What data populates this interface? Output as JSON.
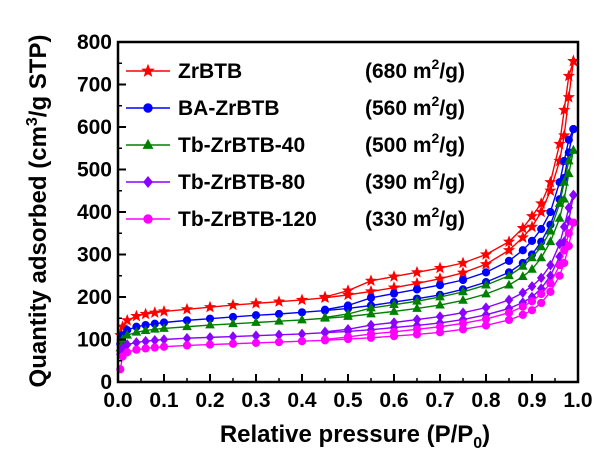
{
  "chart_data": {
    "type": "line",
    "xlabel": "Relative pressure (P/P",
    "xlabel_sub": "0",
    "xlabel_end": ")",
    "ylabel": "Quantity adsorbed (cm",
    "ylabel_sup": "3",
    "ylabel_end": "/g STP)",
    "xlim": [
      0.0,
      1.0
    ],
    "ylim": [
      0,
      800
    ],
    "xticks": [
      "0.0",
      "0.1",
      "0.2",
      "0.3",
      "0.4",
      "0.5",
      "0.6",
      "0.7",
      "0.8",
      "0.9",
      "1.0"
    ],
    "yticks": [
      "0",
      "100",
      "200",
      "300",
      "400",
      "500",
      "600",
      "700",
      "800"
    ],
    "grid": false,
    "legend_position": "top-left",
    "series": [
      {
        "name": "ZrBTB",
        "area": "(680 m",
        "area_sup": "2",
        "area_end": "/g)",
        "color": "#ff0000",
        "marker": "star",
        "adsorption": [
          [
            0.005,
            110
          ],
          [
            0.01,
            130
          ],
          [
            0.02,
            145
          ],
          [
            0.04,
            155
          ],
          [
            0.06,
            160
          ],
          [
            0.08,
            163
          ],
          [
            0.1,
            166
          ],
          [
            0.15,
            171
          ],
          [
            0.2,
            176
          ],
          [
            0.25,
            181
          ],
          [
            0.3,
            185
          ],
          [
            0.35,
            189
          ],
          [
            0.4,
            193
          ],
          [
            0.45,
            198
          ],
          [
            0.5,
            205
          ],
          [
            0.55,
            213
          ],
          [
            0.6,
            222
          ],
          [
            0.65,
            232
          ],
          [
            0.7,
            243
          ],
          [
            0.75,
            257
          ],
          [
            0.8,
            277
          ],
          [
            0.85,
            310
          ],
          [
            0.88,
            340
          ],
          [
            0.9,
            365
          ],
          [
            0.92,
            400
          ],
          [
            0.94,
            450
          ],
          [
            0.96,
            520
          ],
          [
            0.97,
            580
          ],
          [
            0.98,
            670
          ],
          [
            0.99,
            755
          ]
        ],
        "desorption": [
          [
            0.99,
            755
          ],
          [
            0.98,
            720
          ],
          [
            0.97,
            640
          ],
          [
            0.96,
            560
          ],
          [
            0.94,
            470
          ],
          [
            0.92,
            420
          ],
          [
            0.9,
            390
          ],
          [
            0.88,
            362
          ],
          [
            0.85,
            330
          ],
          [
            0.8,
            300
          ],
          [
            0.75,
            280
          ],
          [
            0.7,
            268
          ],
          [
            0.65,
            258
          ],
          [
            0.6,
            248
          ],
          [
            0.55,
            238
          ],
          [
            0.5,
            215
          ],
          [
            0.45,
            200
          ]
        ]
      },
      {
        "name": "BA-ZrBTB",
        "area": "(560 m",
        "area_sup": "2",
        "area_end": "/g)",
        "color": "#0000ff",
        "marker": "circle",
        "adsorption": [
          [
            0.005,
            90
          ],
          [
            0.01,
            110
          ],
          [
            0.02,
            122
          ],
          [
            0.04,
            130
          ],
          [
            0.06,
            134
          ],
          [
            0.08,
            137
          ],
          [
            0.1,
            140
          ],
          [
            0.15,
            145
          ],
          [
            0.2,
            149
          ],
          [
            0.25,
            153
          ],
          [
            0.3,
            157
          ],
          [
            0.35,
            160
          ],
          [
            0.4,
            164
          ],
          [
            0.45,
            168
          ],
          [
            0.5,
            173
          ],
          [
            0.55,
            180
          ],
          [
            0.6,
            188
          ],
          [
            0.65,
            196
          ],
          [
            0.7,
            205
          ],
          [
            0.75,
            218
          ],
          [
            0.8,
            235
          ],
          [
            0.85,
            258
          ],
          [
            0.88,
            280
          ],
          [
            0.9,
            300
          ],
          [
            0.92,
            330
          ],
          [
            0.94,
            370
          ],
          [
            0.96,
            430
          ],
          [
            0.97,
            480
          ],
          [
            0.98,
            540
          ],
          [
            0.99,
            595
          ]
        ],
        "desorption": [
          [
            0.99,
            595
          ],
          [
            0.98,
            570
          ],
          [
            0.97,
            520
          ],
          [
            0.96,
            470
          ],
          [
            0.94,
            400
          ],
          [
            0.92,
            360
          ],
          [
            0.9,
            332
          ],
          [
            0.88,
            310
          ],
          [
            0.85,
            285
          ],
          [
            0.8,
            258
          ],
          [
            0.75,
            240
          ],
          [
            0.7,
            228
          ],
          [
            0.65,
            218
          ],
          [
            0.6,
            208
          ],
          [
            0.55,
            198
          ],
          [
            0.5,
            180
          ],
          [
            0.45,
            170
          ]
        ]
      },
      {
        "name": "Tb-ZrBTB-40",
        "area": "(500 m",
        "area_sup": "2",
        "area_end": "/g)",
        "color": "#008000",
        "marker": "triangle",
        "adsorption": [
          [
            0.005,
            80
          ],
          [
            0.01,
            100
          ],
          [
            0.02,
            110
          ],
          [
            0.04,
            117
          ],
          [
            0.06,
            121
          ],
          [
            0.08,
            124
          ],
          [
            0.1,
            126
          ],
          [
            0.15,
            130
          ],
          [
            0.2,
            134
          ],
          [
            0.25,
            137
          ],
          [
            0.3,
            140
          ],
          [
            0.35,
            143
          ],
          [
            0.4,
            146
          ],
          [
            0.45,
            150
          ],
          [
            0.5,
            154
          ],
          [
            0.55,
            160
          ],
          [
            0.6,
            166
          ],
          [
            0.65,
            173
          ],
          [
            0.7,
            181
          ],
          [
            0.75,
            192
          ],
          [
            0.8,
            207
          ],
          [
            0.85,
            228
          ],
          [
            0.88,
            248
          ],
          [
            0.9,
            265
          ],
          [
            0.92,
            292
          ],
          [
            0.94,
            330
          ],
          [
            0.96,
            385
          ],
          [
            0.97,
            430
          ],
          [
            0.98,
            490
          ],
          [
            0.99,
            545
          ]
        ],
        "desorption": [
          [
            0.99,
            545
          ],
          [
            0.98,
            520
          ],
          [
            0.97,
            470
          ],
          [
            0.96,
            420
          ],
          [
            0.94,
            355
          ],
          [
            0.92,
            318
          ],
          [
            0.9,
            292
          ],
          [
            0.88,
            272
          ],
          [
            0.85,
            250
          ],
          [
            0.8,
            228
          ],
          [
            0.75,
            212
          ],
          [
            0.7,
            200
          ],
          [
            0.65,
            190
          ],
          [
            0.6,
            182
          ],
          [
            0.55,
            174
          ],
          [
            0.5,
            160
          ],
          [
            0.45,
            152
          ]
        ]
      },
      {
        "name": "Tb-ZrBTB-80",
        "area": "(390 m",
        "area_sup": "2",
        "area_end": "/g)",
        "color": "#8b00ff",
        "marker": "diamond",
        "adsorption": [
          [
            0.005,
            65
          ],
          [
            0.01,
            80
          ],
          [
            0.02,
            88
          ],
          [
            0.04,
            93
          ],
          [
            0.06,
            96
          ],
          [
            0.08,
            98
          ],
          [
            0.1,
            100
          ],
          [
            0.15,
            103
          ],
          [
            0.2,
            105
          ],
          [
            0.25,
            107
          ],
          [
            0.3,
            109
          ],
          [
            0.35,
            111
          ],
          [
            0.4,
            113
          ],
          [
            0.45,
            116
          ],
          [
            0.5,
            119
          ],
          [
            0.55,
            123
          ],
          [
            0.6,
            128
          ],
          [
            0.65,
            133
          ],
          [
            0.7,
            139
          ],
          [
            0.75,
            147
          ],
          [
            0.8,
            158
          ],
          [
            0.85,
            173
          ],
          [
            0.88,
            187
          ],
          [
            0.9,
            200
          ],
          [
            0.92,
            220
          ],
          [
            0.94,
            250
          ],
          [
            0.96,
            295
          ],
          [
            0.97,
            330
          ],
          [
            0.98,
            380
          ],
          [
            0.99,
            440
          ]
        ],
        "desorption": [
          [
            0.99,
            440
          ],
          [
            0.98,
            410
          ],
          [
            0.97,
            365
          ],
          [
            0.96,
            325
          ],
          [
            0.94,
            275
          ],
          [
            0.92,
            245
          ],
          [
            0.9,
            225
          ],
          [
            0.88,
            210
          ],
          [
            0.85,
            193
          ],
          [
            0.8,
            175
          ],
          [
            0.75,
            163
          ],
          [
            0.7,
            154
          ],
          [
            0.65,
            147
          ],
          [
            0.6,
            140
          ],
          [
            0.55,
            134
          ],
          [
            0.5,
            124
          ],
          [
            0.45,
            118
          ]
        ]
      },
      {
        "name": "Tb-ZrBTB-120",
        "area": "(330 m",
        "area_sup": "2",
        "area_end": "/g)",
        "color": "#ff00ff",
        "marker": "circle",
        "adsorption": [
          [
            0.005,
            30
          ],
          [
            0.01,
            60
          ],
          [
            0.02,
            70
          ],
          [
            0.04,
            76
          ],
          [
            0.06,
            79
          ],
          [
            0.08,
            81
          ],
          [
            0.1,
            83
          ],
          [
            0.15,
            86
          ],
          [
            0.2,
            88
          ],
          [
            0.25,
            90
          ],
          [
            0.3,
            92
          ],
          [
            0.35,
            94
          ],
          [
            0.4,
            96
          ],
          [
            0.45,
            98
          ],
          [
            0.5,
            101
          ],
          [
            0.55,
            104
          ],
          [
            0.6,
            108
          ],
          [
            0.65,
            112
          ],
          [
            0.7,
            117
          ],
          [
            0.75,
            124
          ],
          [
            0.8,
            133
          ],
          [
            0.85,
            146
          ],
          [
            0.88,
            158
          ],
          [
            0.9,
            169
          ],
          [
            0.92,
            186
          ],
          [
            0.94,
            212
          ],
          [
            0.96,
            250
          ],
          [
            0.97,
            280
          ],
          [
            0.98,
            320
          ],
          [
            0.99,
            375
          ]
        ],
        "desorption": [
          [
            0.99,
            375
          ],
          [
            0.98,
            350
          ],
          [
            0.97,
            310
          ],
          [
            0.96,
            275
          ],
          [
            0.94,
            232
          ],
          [
            0.92,
            207
          ],
          [
            0.9,
            190
          ],
          [
            0.88,
            177
          ],
          [
            0.85,
            163
          ],
          [
            0.8,
            148
          ],
          [
            0.75,
            138
          ],
          [
            0.7,
            130
          ],
          [
            0.65,
            124
          ],
          [
            0.6,
            118
          ],
          [
            0.55,
            113
          ],
          [
            0.5,
            106
          ],
          [
            0.45,
            100
          ]
        ]
      }
    ]
  }
}
